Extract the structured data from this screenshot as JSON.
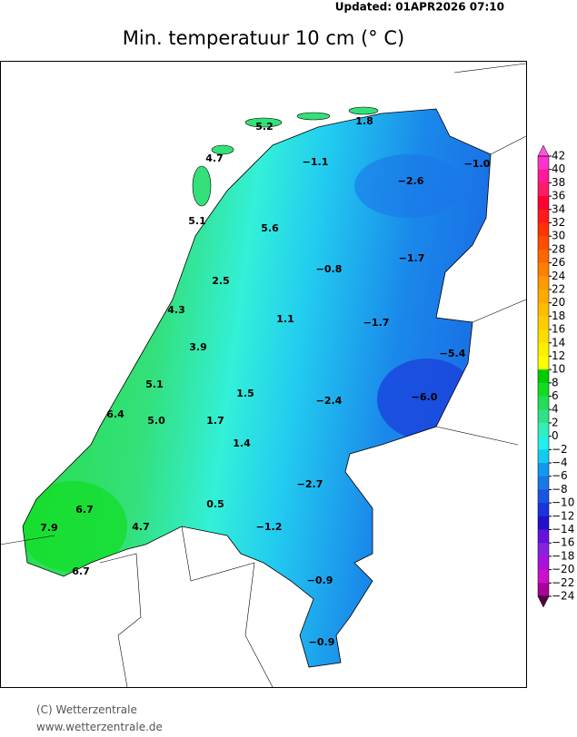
{
  "header": {
    "updated": "Updated:  01APR2026  07:10",
    "title": "Min.  temperatuur  10  cm  (° C)"
  },
  "stations": [
    "5.2",
    "1.8",
    "4.7",
    "−1.1",
    "−1.0",
    "−2.6",
    "5.1",
    "5.6",
    "−0.8",
    "−1.7",
    "2.5",
    "4.3",
    "1.1",
    "−1.7",
    "3.9",
    "−5.4",
    "5.1",
    "1.5",
    "−2.4",
    "−6.0",
    "6.4",
    "5.0",
    "1.7",
    "1.4",
    "−2.7",
    "6.7",
    "0.5",
    "7.9",
    "4.7",
    "−1.2",
    "6.7",
    "−0.9",
    "−0.9"
  ],
  "colorbar": {
    "ticks": [
      42,
      40,
      38,
      36,
      34,
      32,
      30,
      28,
      26,
      24,
      22,
      20,
      18,
      16,
      14,
      12,
      10,
      8,
      6,
      4,
      2,
      0,
      {
        "value": -2,
        "label": "−2"
      },
      {
        "value": -4,
        "label": "−4"
      },
      {
        "value": -6,
        "label": "−6"
      },
      {
        "value": -8,
        "label": "−8"
      },
      {
        "value": -10,
        "label": "−10"
      },
      {
        "value": -12,
        "label": "−12"
      },
      {
        "value": -14,
        "label": "−14"
      },
      {
        "value": -16,
        "label": "−16"
      },
      {
        "value": -18,
        "label": "−18"
      },
      {
        "value": -20,
        "label": "−20"
      },
      {
        "value": -22,
        "label": "−22"
      },
      {
        "value": -24,
        "label": "−24"
      }
    ],
    "colors": [
      "#ff33cc",
      "#ff1a99",
      "#ff1a66",
      "#ff0033",
      "#ff1a1a",
      "#ff3300",
      "#ff4d00",
      "#ff6600",
      "#ff7f00",
      "#ff9900",
      "#ffaa00",
      "#ffbb00",
      "#ffcc00",
      "#ffdd00",
      "#ffee00",
      "#ffff00",
      "#00cc00",
      "#11dd22",
      "#22dd55",
      "#33e088",
      "#33eebb",
      "#22eeee",
      "#11ccf0",
      "#1199ee",
      "#1a77e8",
      "#1a55e0",
      "#1a33dd",
      "#2211cc",
      "#6611dd",
      "#8822dd",
      "#aa11dd",
      "#cc11cc",
      "#aa0099",
      "#880077"
    ],
    "end_colors": [
      "#ff55dd",
      "#550044"
    ]
  },
  "footer": {
    "copyright": "(C)  Wetterzentrale",
    "url": "www.wetterzentrale.de"
  }
}
